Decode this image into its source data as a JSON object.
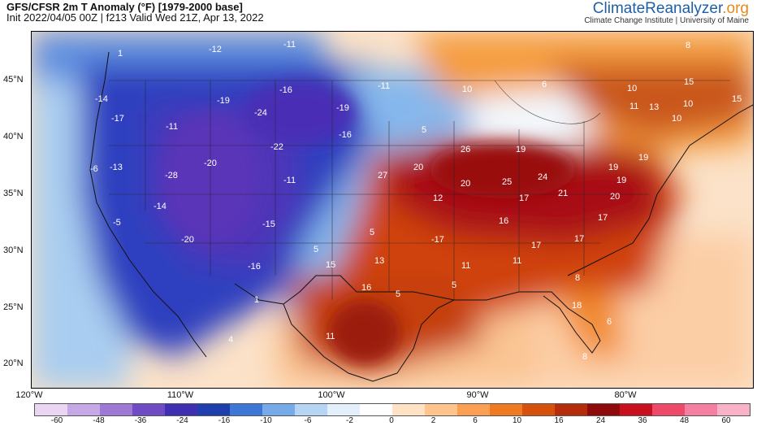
{
  "header": {
    "title": "GFS/CFSR 2m T Anomaly (°F) [1979-2000 base]",
    "subtitle": "Init 2022/04/05 00Z | f213 Valid Wed 21Z, Apr 13, 2022"
  },
  "brand": {
    "name_part1": "ClimateReanalyzer",
    "name_part2": ".org",
    "institution": "Climate Change Institute | University of Maine"
  },
  "map": {
    "lat_labels": [
      "45°N",
      "40°N",
      "35°N",
      "30°N",
      "25°N",
      "20°N"
    ],
    "lon_labels": [
      "120°W",
      "110°W",
      "100°W",
      "90°W",
      "80°W"
    ],
    "values": [
      "-11",
      "-12",
      "-14",
      "-17",
      "-19",
      "-16",
      "-24",
      "-11",
      "-19",
      "-16",
      "-11",
      "-22",
      "-20",
      "-6",
      "-13",
      "-28",
      "-11",
      "-14",
      "-15",
      "-5",
      "-20",
      "-16",
      "1",
      "4",
      "5",
      "5",
      "5",
      "27",
      "20",
      "26",
      "19",
      "19",
      "20",
      "12",
      "25",
      "24",
      "19",
      "19",
      "17",
      "21",
      "20",
      "16",
      "17",
      "17",
      "-17",
      "13",
      "11",
      "11",
      "17",
      "16",
      "15",
      "5",
      "8",
      "11",
      "18",
      "8",
      "6",
      "10",
      "15",
      "11",
      "10",
      "15",
      "13",
      "10",
      "10",
      "5",
      "6",
      "8",
      "1"
    ],
    "colors": {
      "cold_extreme": "#4a2fb5",
      "cold": "#2a40c0",
      "cool": "#86b6ec",
      "neutral": "#f6fbff",
      "warm": "#f59a3a",
      "hot": "#c8340e",
      "hot_extreme": "#a80f0f",
      "ocean_warm": "#fbcfa2"
    }
  },
  "colorbar": {
    "ticks": [
      "-60",
      "-48",
      "-36",
      "-24",
      "-16",
      "-10",
      "-6",
      "-2",
      "0",
      "2",
      "6",
      "10",
      "16",
      "24",
      "36",
      "48",
      "60"
    ],
    "colors": [
      "#ead6f3",
      "#c6a8e6",
      "#9d79d5",
      "#6f4cc3",
      "#3f2fb3",
      "#1f3fae",
      "#3d78d6",
      "#77aae8",
      "#b6d5f4",
      "#e3f0fb",
      "#ffffff",
      "#ffe2c4",
      "#ffc48b",
      "#fba052",
      "#f07a22",
      "#d6520c",
      "#b52d0a",
      "#8f0a0a",
      "#c8101e",
      "#ec4a68",
      "#f57fa0",
      "#f8b1c7"
    ]
  }
}
